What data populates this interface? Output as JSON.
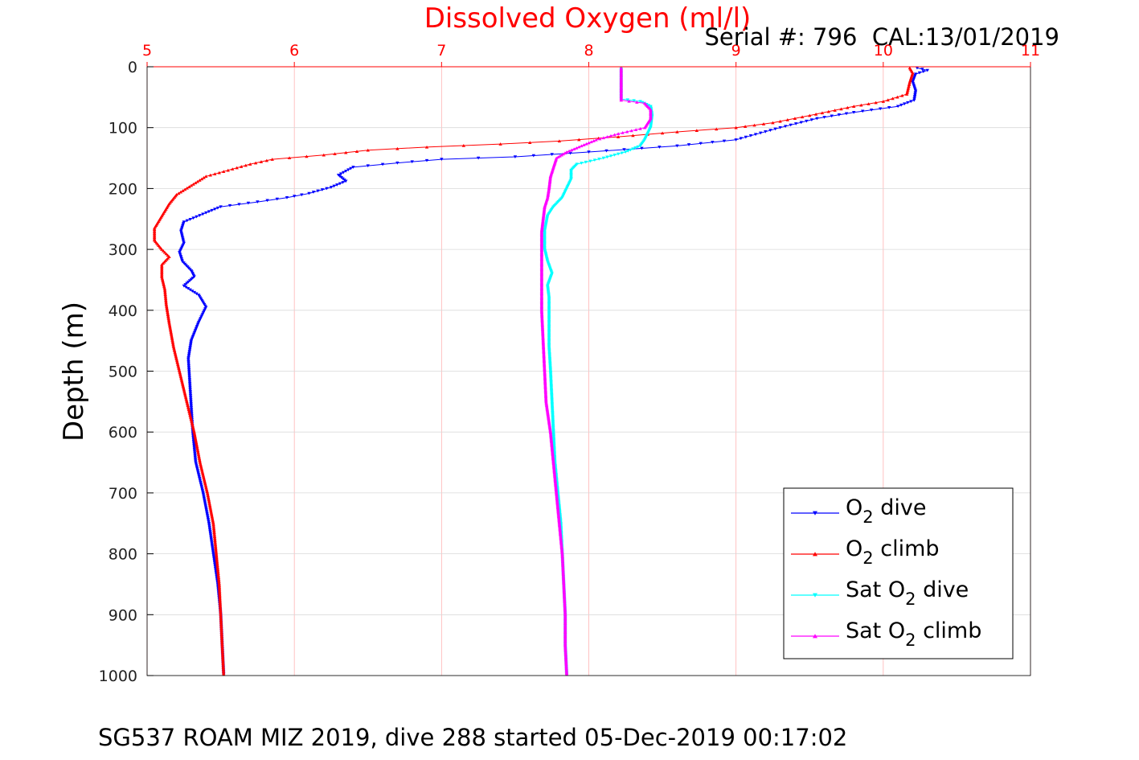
{
  "chart_data": {
    "type": "scatter",
    "title": "Dissolved Oxygen (ml/l)",
    "subtitle": "Serial #: 796  CAL:13/01/2019",
    "footer": "SG537 ROAM MIZ 2019, dive 288 started 05-Dec-2019 00:17:02",
    "xlabel": "Dissolved Oxygen (ml/l)",
    "ylabel": "Depth (m)",
    "xlim": [
      5,
      11
    ],
    "ylim": [
      0,
      1000
    ],
    "y_reversed": true,
    "x_axis_position": "top",
    "x_ticks": [
      "5",
      "6",
      "7",
      "8",
      "9",
      "10",
      "11"
    ],
    "y_ticks": [
      "0",
      "100",
      "200",
      "300",
      "400",
      "500",
      "600",
      "700",
      "800",
      "900",
      "1000"
    ],
    "grid": true,
    "legend_position": "bottom-right",
    "series": [
      {
        "name": "O2 dive",
        "legend": {
          "pre": "O",
          "sub": "2",
          "post": " dive"
        },
        "color": "#0000ff",
        "marker": "triangle-down",
        "points": [
          [
            10.23,
            2
          ],
          [
            10.3,
            6
          ],
          [
            10.22,
            12
          ],
          [
            10.2,
            25
          ],
          [
            10.22,
            40
          ],
          [
            10.21,
            55
          ],
          [
            10.1,
            65
          ],
          [
            9.8,
            75
          ],
          [
            9.55,
            85
          ],
          [
            9.3,
            100
          ],
          [
            9.0,
            120
          ],
          [
            8.6,
            130
          ],
          [
            8.0,
            140
          ],
          [
            7.5,
            148
          ],
          [
            7.0,
            152
          ],
          [
            6.7,
            158
          ],
          [
            6.4,
            165
          ],
          [
            6.3,
            178
          ],
          [
            6.35,
            188
          ],
          [
            6.25,
            198
          ],
          [
            6.1,
            208
          ],
          [
            5.95,
            215
          ],
          [
            5.75,
            222
          ],
          [
            5.5,
            230
          ],
          [
            5.4,
            240
          ],
          [
            5.25,
            255
          ],
          [
            5.23,
            270
          ],
          [
            5.25,
            290
          ],
          [
            5.22,
            305
          ],
          [
            5.24,
            320
          ],
          [
            5.3,
            335
          ],
          [
            5.32,
            345
          ],
          [
            5.25,
            360
          ],
          [
            5.35,
            375
          ],
          [
            5.4,
            395
          ],
          [
            5.35,
            420
          ],
          [
            5.3,
            450
          ],
          [
            5.28,
            480
          ],
          [
            5.29,
            520
          ],
          [
            5.3,
            560
          ],
          [
            5.31,
            600
          ],
          [
            5.33,
            650
          ],
          [
            5.38,
            700
          ],
          [
            5.42,
            750
          ],
          [
            5.45,
            800
          ],
          [
            5.48,
            850
          ],
          [
            5.5,
            900
          ],
          [
            5.51,
            950
          ],
          [
            5.52,
            998
          ]
        ]
      },
      {
        "name": "O2 climb",
        "legend": {
          "pre": "O",
          "sub": "2",
          "post": " climb"
        },
        "color": "#ff0000",
        "marker": "triangle-up",
        "points": [
          [
            10.18,
            2
          ],
          [
            10.2,
            10
          ],
          [
            10.18,
            25
          ],
          [
            10.16,
            45
          ],
          [
            10.0,
            57
          ],
          [
            9.8,
            65
          ],
          [
            9.5,
            80
          ],
          [
            9.25,
            92
          ],
          [
            9.0,
            100
          ],
          [
            8.6,
            107
          ],
          [
            8.2,
            115
          ],
          [
            7.8,
            122
          ],
          [
            7.4,
            127
          ],
          [
            6.9,
            132
          ],
          [
            6.5,
            137
          ],
          [
            6.2,
            145
          ],
          [
            5.85,
            152
          ],
          [
            5.7,
            160
          ],
          [
            5.55,
            170
          ],
          [
            5.4,
            180
          ],
          [
            5.3,
            195
          ],
          [
            5.2,
            210
          ],
          [
            5.15,
            225
          ],
          [
            5.1,
            245
          ],
          [
            5.05,
            265
          ],
          [
            5.05,
            285
          ],
          [
            5.1,
            300
          ],
          [
            5.15,
            312
          ],
          [
            5.1,
            325
          ],
          [
            5.1,
            345
          ],
          [
            5.12,
            365
          ],
          [
            5.13,
            390
          ],
          [
            5.15,
            420
          ],
          [
            5.18,
            460
          ],
          [
            5.22,
            500
          ],
          [
            5.27,
            550
          ],
          [
            5.32,
            600
          ],
          [
            5.36,
            650
          ],
          [
            5.41,
            700
          ],
          [
            5.45,
            750
          ],
          [
            5.47,
            800
          ],
          [
            5.49,
            850
          ],
          [
            5.5,
            900
          ],
          [
            5.51,
            950
          ],
          [
            5.52,
            998
          ]
        ]
      },
      {
        "name": "Sat O2 dive",
        "legend": {
          "pre": "Sat O",
          "sub": "2",
          "post": " dive"
        },
        "color": "#00ffff",
        "marker": "triangle-down",
        "points": [
          [
            8.22,
            2
          ],
          [
            8.22,
            20
          ],
          [
            8.22,
            40
          ],
          [
            8.22,
            53
          ],
          [
            8.35,
            57
          ],
          [
            8.42,
            65
          ],
          [
            8.43,
            80
          ],
          [
            8.42,
            100
          ],
          [
            8.38,
            120
          ],
          [
            8.35,
            130
          ],
          [
            8.25,
            140
          ],
          [
            8.1,
            150
          ],
          [
            7.92,
            160
          ],
          [
            7.88,
            170
          ],
          [
            7.88,
            185
          ],
          [
            7.85,
            200
          ],
          [
            7.82,
            215
          ],
          [
            7.76,
            230
          ],
          [
            7.72,
            245
          ],
          [
            7.7,
            270
          ],
          [
            7.7,
            300
          ],
          [
            7.72,
            320
          ],
          [
            7.75,
            340
          ],
          [
            7.72,
            360
          ],
          [
            7.73,
            380
          ],
          [
            7.73,
            420
          ],
          [
            7.73,
            460
          ],
          [
            7.74,
            500
          ],
          [
            7.75,
            550
          ],
          [
            7.76,
            600
          ],
          [
            7.77,
            650
          ],
          [
            7.79,
            700
          ],
          [
            7.81,
            750
          ],
          [
            7.82,
            800
          ],
          [
            7.83,
            850
          ],
          [
            7.84,
            900
          ],
          [
            7.84,
            950
          ],
          [
            7.85,
            998
          ]
        ]
      },
      {
        "name": "Sat O2 climb",
        "legend": {
          "pre": "Sat O",
          "sub": "2",
          "post": " climb"
        },
        "color": "#ff00ff",
        "marker": "triangle-up",
        "points": [
          [
            8.22,
            2
          ],
          [
            8.22,
            20
          ],
          [
            8.22,
            40
          ],
          [
            8.22,
            55
          ],
          [
            8.38,
            60
          ],
          [
            8.42,
            70
          ],
          [
            8.42,
            85
          ],
          [
            8.38,
            100
          ],
          [
            8.2,
            110
          ],
          [
            8.05,
            120
          ],
          [
            7.95,
            130
          ],
          [
            7.85,
            140
          ],
          [
            7.78,
            150
          ],
          [
            7.76,
            165
          ],
          [
            7.74,
            180
          ],
          [
            7.73,
            200
          ],
          [
            7.72,
            215
          ],
          [
            7.7,
            230
          ],
          [
            7.69,
            250
          ],
          [
            7.68,
            270
          ],
          [
            7.68,
            300
          ],
          [
            7.68,
            330
          ],
          [
            7.68,
            360
          ],
          [
            7.68,
            400
          ],
          [
            7.69,
            450
          ],
          [
            7.7,
            500
          ],
          [
            7.71,
            550
          ],
          [
            7.74,
            600
          ],
          [
            7.76,
            650
          ],
          [
            7.78,
            700
          ],
          [
            7.8,
            750
          ],
          [
            7.82,
            800
          ],
          [
            7.83,
            850
          ],
          [
            7.84,
            900
          ],
          [
            7.84,
            950
          ],
          [
            7.85,
            998
          ]
        ]
      }
    ]
  }
}
